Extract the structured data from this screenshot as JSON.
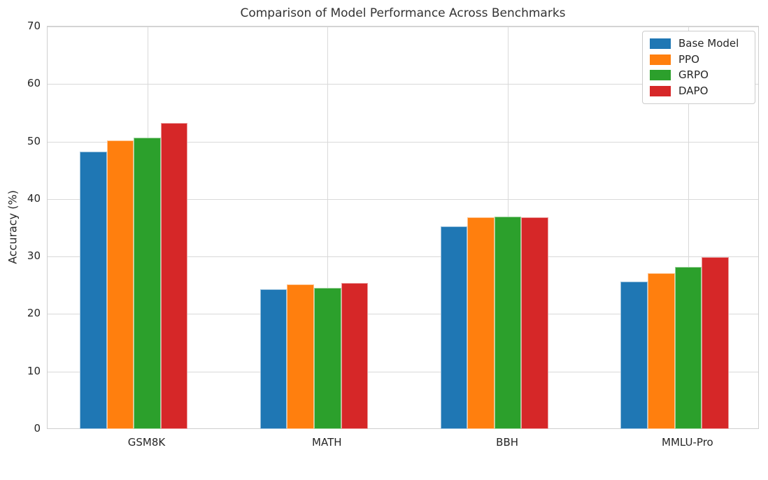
{
  "chart_data": {
    "type": "bar",
    "title": "Comparison of Model Performance Across Benchmarks",
    "xlabel": "",
    "ylabel": "Accuracy (%)",
    "categories": [
      "GSM8K",
      "MATH",
      "BBH",
      "MMLU-Pro"
    ],
    "series": [
      {
        "name": "Base Model",
        "color": "#1f77b4",
        "values": [
          48.3,
          24.3,
          35.3,
          25.7
        ]
      },
      {
        "name": "PPO",
        "color": "#ff7f0e",
        "values": [
          50.2,
          25.1,
          36.8,
          27.1
        ]
      },
      {
        "name": "GRPO",
        "color": "#2ca02c",
        "values": [
          50.7,
          24.6,
          36.9,
          28.2
        ]
      },
      {
        "name": "DAPO",
        "color": "#d62728",
        "values": [
          53.2,
          25.4,
          36.8,
          29.9
        ]
      }
    ],
    "ylim": [
      0,
      70
    ],
    "yticks": [
      0,
      10,
      20,
      30,
      40,
      50,
      60,
      70
    ],
    "grid": true,
    "legend_position": "upper right"
  },
  "colors": {
    "grid": "#d9d9d9",
    "spine": "#cfcfcf",
    "text": "#262626",
    "background": "#ffffff"
  }
}
